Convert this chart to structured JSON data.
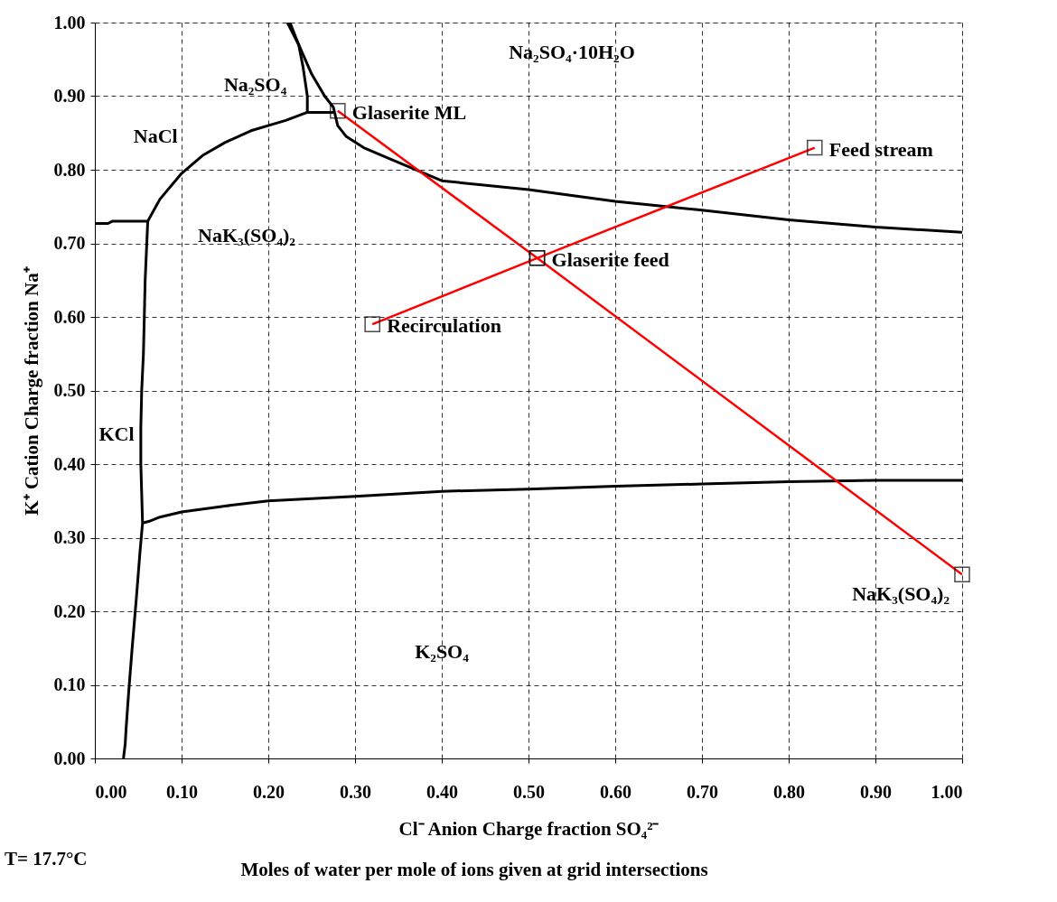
{
  "chart_data": {
    "type": "line",
    "xlabel": "Cl⁻        Anion Charge fraction        SO₄²⁻",
    "ylabel": "K⁺        Cation Charge fraction        Na⁺",
    "xlim": [
      0,
      1
    ],
    "ylim": [
      0,
      1
    ],
    "xticks": [
      {
        "value": 0,
        "label": "0.00"
      },
      {
        "value": 0.1,
        "label": "0.10"
      },
      {
        "value": 0.2,
        "label": "0.20"
      },
      {
        "value": 0.3,
        "label": "0.30"
      },
      {
        "value": 0.4,
        "label": "0.40"
      },
      {
        "value": 0.5,
        "label": "0.50"
      },
      {
        "value": 0.6,
        "label": "0.60"
      },
      {
        "value": 0.7,
        "label": "0.70"
      },
      {
        "value": 0.8,
        "label": "0.80"
      },
      {
        "value": 0.9,
        "label": "0.90"
      },
      {
        "value": 1,
        "label": "1.00"
      }
    ],
    "yticks": [
      {
        "value": 0,
        "label": "0.00"
      },
      {
        "value": 0.1,
        "label": "0.10"
      },
      {
        "value": 0.2,
        "label": "0.20"
      },
      {
        "value": 0.3,
        "label": "0.30"
      },
      {
        "value": 0.4,
        "label": "0.40"
      },
      {
        "value": 0.5,
        "label": "0.50"
      },
      {
        "value": 0.6,
        "label": "0.60"
      },
      {
        "value": 0.7,
        "label": "0.70"
      },
      {
        "value": 0.8,
        "label": "0.80"
      },
      {
        "value": 0.9,
        "label": "0.90"
      },
      {
        "value": 1,
        "label": "1.00"
      }
    ],
    "grid": true,
    "series": [
      {
        "color": "#000000",
        "marker": "none",
        "x": [
          0,
          0.015,
          0.02,
          0.061,
          0.058,
          0.056,
          0.054,
          0.053,
          0.053,
          0.055,
          0.052,
          0.048,
          0.043,
          0.039,
          0.036,
          0.035,
          0.033
        ],
        "values": [
          0.727,
          0.727,
          0.73,
          0.73,
          0.65,
          0.55,
          0.5,
          0.45,
          0.4,
          0.32,
          0.28,
          0.22,
          0.15,
          0.09,
          0.04,
          0.02,
          0
        ]
      },
      {
        "color": "#000000",
        "marker": "none",
        "x": [
          0.055,
          0.062,
          0.075,
          0.1,
          0.15,
          0.2,
          0.3,
          0.4,
          0.5,
          0.6,
          0.7,
          0.8,
          0.9,
          1.0
        ],
        "values": [
          0.32,
          0.322,
          0.328,
          0.335,
          0.343,
          0.35,
          0.356,
          0.363,
          0.366,
          0.37,
          0.373,
          0.376,
          0.378,
          0.378
        ]
      },
      {
        "color": "#000000",
        "marker": "none",
        "x": [
          0.061,
          0.075,
          0.1,
          0.125,
          0.15,
          0.18,
          0.22,
          0.245,
          0.275
        ],
        "values": [
          0.73,
          0.76,
          0.795,
          0.82,
          0.837,
          0.853,
          0.867,
          0.878,
          0.878
        ]
      },
      {
        "color": "#000000",
        "marker": "none",
        "x": [
          0.225,
          0.235,
          0.24,
          0.245,
          0.245
        ],
        "values": [
          1.0,
          0.97,
          0.94,
          0.9,
          0.878
        ]
      },
      {
        "color": "#000000",
        "marker": "none",
        "x": [
          0.222,
          0.235,
          0.25,
          0.265,
          0.275,
          0.28,
          0.29,
          0.31,
          0.34,
          0.4,
          0.5,
          0.6,
          0.7,
          0.8,
          0.9,
          1.0
        ],
        "values": [
          1.0,
          0.97,
          0.93,
          0.9,
          0.885,
          0.86,
          0.845,
          0.83,
          0.815,
          0.785,
          0.773,
          0.757,
          0.745,
          0.732,
          0.722,
          0.715
        ]
      },
      {
        "color": "#ff0000",
        "marker": "square",
        "x": [
          0.28,
          0.51,
          1.0
        ],
        "values": [
          0.88,
          0.68,
          0.25
        ]
      },
      {
        "color": "#ff0000",
        "marker": "square",
        "x": [
          0.32,
          0.51,
          0.83
        ],
        "values": [
          0.59,
          0.68,
          0.83
        ]
      }
    ],
    "annotations": [
      "Na₂SO₄·10H₂O",
      "Na₂SO₄",
      "NaCl",
      "NaK₃(SO₄)₂",
      "KCl",
      "K₂SO₄",
      {
        "text": "Glaserite ML",
        "x": 0.28,
        "y": 0.88
      },
      {
        "text": "Feed stream",
        "x": 0.83,
        "y": 0.83
      },
      {
        "text": "Glaserite feed",
        "x": 0.51,
        "y": 0.68
      },
      {
        "text": "Recirculation",
        "x": 0.32,
        "y": 0.59
      },
      {
        "text": "NaK₃(SO₄)₂",
        "x": 1.0,
        "y": 0.25
      },
      "T=  17.7°C",
      "Moles of water per mole of ions given at grid intersections"
    ]
  }
}
